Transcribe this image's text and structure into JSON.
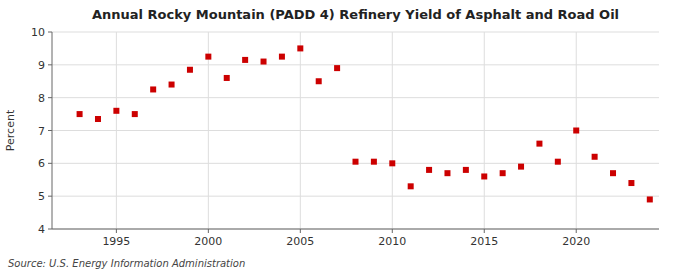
{
  "chart_data": {
    "type": "scatter",
    "title": "Annual Rocky Mountain (PADD 4) Refinery Yield of Asphalt and Road Oil",
    "y_label": "Percent",
    "annotation": "Source: U.S. Energy Information Administration",
    "color": "#cc0000",
    "marker": "square",
    "grid": true,
    "xlim": [
      1991.5,
      2024.5
    ],
    "ylim": [
      4,
      10
    ],
    "xticks": [
      1995,
      2000,
      2005,
      2010,
      2015,
      2020
    ],
    "yticks": [
      4,
      5,
      6,
      7,
      8,
      9,
      10
    ],
    "x": [
      1993,
      1994,
      1995,
      1996,
      1997,
      1998,
      1999,
      2000,
      2001,
      2002,
      2003,
      2004,
      2005,
      2006,
      2007,
      2008,
      2009,
      2010,
      2011,
      2012,
      2013,
      2014,
      2015,
      2016,
      2017,
      2018,
      2019,
      2020,
      2021,
      2022,
      2023,
      2024
    ],
    "values": [
      7.5,
      7.35,
      7.6,
      7.5,
      8.25,
      8.4,
      8.85,
      9.25,
      8.6,
      9.15,
      9.1,
      9.25,
      9.5,
      8.5,
      8.9,
      6.05,
      6.05,
      6.0,
      5.3,
      5.8,
      5.7,
      5.8,
      5.6,
      5.7,
      5.9,
      6.6,
      6.05,
      7.0,
      6.2,
      5.7,
      5.4,
      4.9
    ]
  }
}
